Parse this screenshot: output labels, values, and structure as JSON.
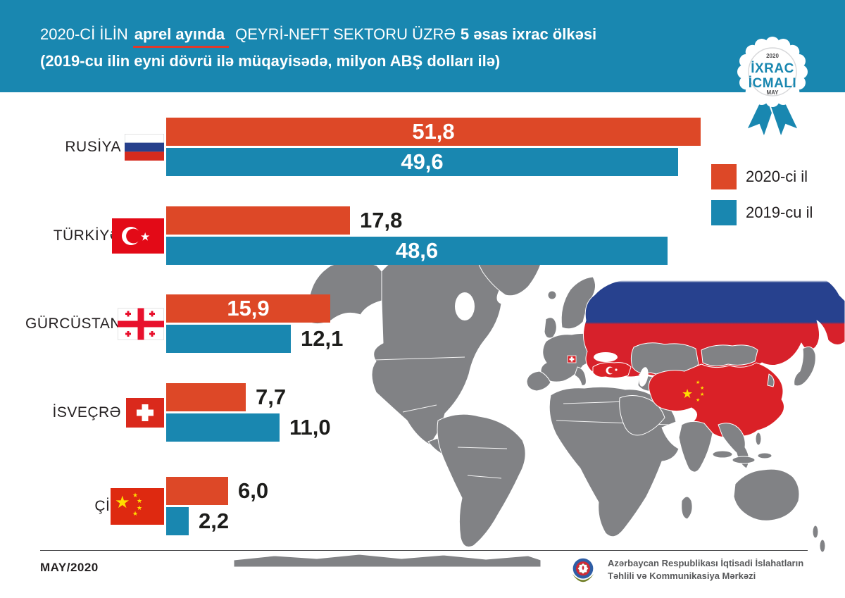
{
  "header": {
    "title": {
      "part1": "2020-Cİ İLİN",
      "underlined": "aprel ayında",
      "part2": "QEYRİ-NEFT SEKTORU ÜZRƏ",
      "part3": "5 əsas ixrac ölkəsi"
    },
    "subtitle": "(2019-cu ilin eyni dövrü ilə müqayisədə, milyon ABŞ dolları ilə)",
    "bg_color": "#1987b0",
    "underline_color": "#e0392b"
  },
  "badge": {
    "year": "2020",
    "line1": "İXRAC",
    "line2": "İCMALI",
    "month": "MAY"
  },
  "legend": [
    {
      "label": "2020-ci il",
      "color": "#dd4827"
    },
    {
      "label": "2019-cu il",
      "color": "#1987b0"
    }
  ],
  "chart_data": {
    "type": "bar",
    "orientation": "horizontal",
    "title": "2020-ci ilin aprel ayında qeyri-neft sektoru üzrə 5 əsas ixrac ölkəsi",
    "unit": "milyon ABŞ dolları",
    "xlim": [
      0,
      52
    ],
    "grid": false,
    "legend_position": "top-right",
    "categories": [
      "RUSİYA",
      "TÜRKİYƏ",
      "GÜRCÜSTAN",
      "İSVEÇRƏ",
      "ÇİN"
    ],
    "flags": [
      "russia-flag",
      "turkey-flag",
      "georgia-flag",
      "switzerland-flag",
      "china-flag"
    ],
    "series": [
      {
        "name": "2020-ci il",
        "color": "#dd4827",
        "values": [
          51.8,
          17.8,
          15.9,
          7.7,
          6.0
        ],
        "labels": [
          "51,8",
          "17,8",
          "15,9",
          "7,7",
          "6,0"
        ],
        "label_inside": [
          true,
          false,
          true,
          false,
          false
        ]
      },
      {
        "name": "2019-cu il",
        "color": "#1987b0",
        "values": [
          49.6,
          48.6,
          12.1,
          11.0,
          2.2
        ],
        "labels": [
          "49,6",
          "48,6",
          "12,1",
          "11,0",
          "2,2"
        ],
        "label_inside": [
          true,
          true,
          false,
          false,
          false
        ]
      }
    ]
  },
  "map": {
    "land_color": "#818285",
    "highlight_red": "#da2127",
    "russia_blue": "#27418e",
    "highlighted": [
      "Russia",
      "Turkey",
      "Switzerland",
      "China"
    ]
  },
  "footer": {
    "date": "MAY/2020",
    "org_line1": "Azərbaycan Respublikası İqtisadi İslahatların",
    "org_line2": "Təhlili və Kommunikasiya Mərkəzi"
  }
}
